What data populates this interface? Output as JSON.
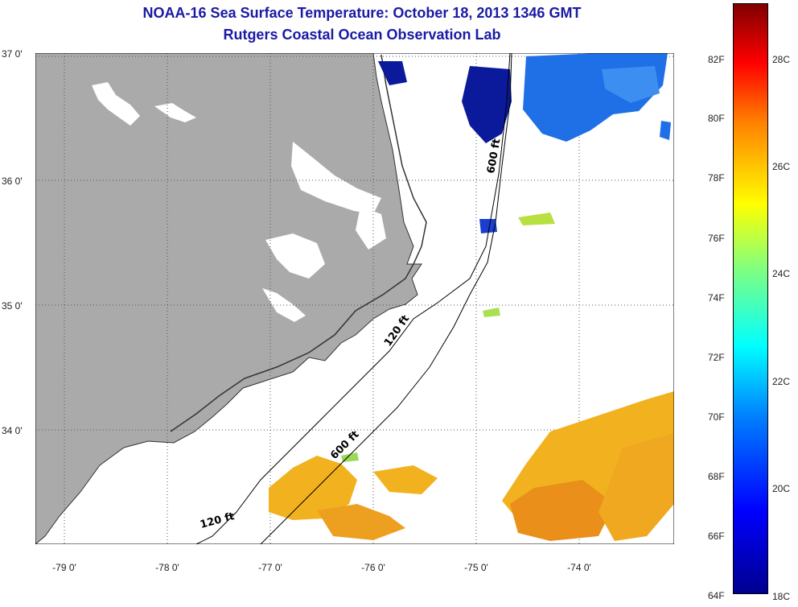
{
  "title_line1": "NOAA-16 Sea Surface Temperature:  October 18, 2013 1346 GMT",
  "title_line2": "Rutgers Coastal Ocean Observation Lab",
  "lat_labels": [
    "37 0'",
    "36 0'",
    "35 0'",
    "34 0'"
  ],
  "lon_labels": [
    "-79 0'",
    "-78 0'",
    "-77 0'",
    "-76 0'",
    "-75 0'",
    "-74 0'"
  ],
  "isobath_labels": [
    "600 ft",
    "120 ft",
    "600 ft",
    "120 ft"
  ],
  "colorbar": {
    "fahrenheit": [
      "82F",
      "80F",
      "78F",
      "76F",
      "74F",
      "72F",
      "70F",
      "68F",
      "66F",
      "64F"
    ],
    "celsius": [
      "28C",
      "26C",
      "24C",
      "22C",
      "20C",
      "18C"
    ]
  },
  "colors": {
    "land": "#aaaaaa",
    "ocean": "#ffffff",
    "title": "#1a1aa6",
    "warm_sst": "#f2b21f",
    "cool_sst": "#1f6fe6",
    "deep_blue": "#0a1a9a"
  }
}
